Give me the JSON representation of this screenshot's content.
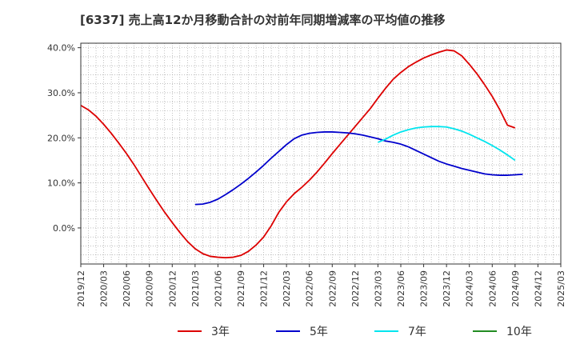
{
  "chart_data": {
    "type": "line",
    "title": "[6337]  売上高12か月移動合計の対前年同期増減率の平均値の推移",
    "xlabel": "",
    "ylabel": "",
    "ylim": [
      -0.08,
      0.41
    ],
    "yticks": [
      0.0,
      0.1,
      0.2,
      0.3,
      0.4
    ],
    "ytick_labels": [
      "0.0%",
      "10.0%",
      "20.0%",
      "30.0%",
      "40.0%"
    ],
    "x_range": [
      "2019/12",
      "2025/03"
    ],
    "x_tick_labels": [
      "2019/12",
      "2020/03",
      "2020/06",
      "2020/09",
      "2020/12",
      "2021/03",
      "2021/06",
      "2021/09",
      "2021/12",
      "2022/03",
      "2022/06",
      "2022/09",
      "2022/12",
      "2023/03",
      "2023/06",
      "2023/09",
      "2023/12",
      "2024/03",
      "2024/06",
      "2024/09",
      "2024/12",
      "2025/03"
    ],
    "grid": true,
    "legend_position": "bottom",
    "series": [
      {
        "name": "3年",
        "color": "#dd0000",
        "points": [
          [
            "2019/12",
            0.272
          ],
          [
            "2020/01",
            0.262
          ],
          [
            "2020/02",
            0.248
          ],
          [
            "2020/03",
            0.23
          ],
          [
            "2020/04",
            0.21
          ],
          [
            "2020/05",
            0.188
          ],
          [
            "2020/06",
            0.165
          ],
          [
            "2020/07",
            0.14
          ],
          [
            "2020/08",
            0.113
          ],
          [
            "2020/09",
            0.086
          ],
          [
            "2020/10",
            0.06
          ],
          [
            "2020/11",
            0.035
          ],
          [
            "2020/12",
            0.012
          ],
          [
            "2021/01",
            -0.01
          ],
          [
            "2021/02",
            -0.03
          ],
          [
            "2021/03",
            -0.046
          ],
          [
            "2021/04",
            -0.057
          ],
          [
            "2021/05",
            -0.063
          ],
          [
            "2021/06",
            -0.065
          ],
          [
            "2021/07",
            -0.066
          ],
          [
            "2021/08",
            -0.065
          ],
          [
            "2021/09",
            -0.061
          ],
          [
            "2021/10",
            -0.052
          ],
          [
            "2021/11",
            -0.038
          ],
          [
            "2021/12",
            -0.02
          ],
          [
            "2022/01",
            0.005
          ],
          [
            "2022/02",
            0.035
          ],
          [
            "2022/03",
            0.058
          ],
          [
            "2022/04",
            0.076
          ],
          [
            "2022/05",
            0.09
          ],
          [
            "2022/06",
            0.106
          ],
          [
            "2022/07",
            0.124
          ],
          [
            "2022/08",
            0.144
          ],
          [
            "2022/09",
            0.165
          ],
          [
            "2022/10",
            0.185
          ],
          [
            "2022/11",
            0.205
          ],
          [
            "2022/12",
            0.225
          ],
          [
            "2023/01",
            0.245
          ],
          [
            "2023/02",
            0.265
          ],
          [
            "2023/03",
            0.288
          ],
          [
            "2023/04",
            0.31
          ],
          [
            "2023/05",
            0.33
          ],
          [
            "2023/06",
            0.345
          ],
          [
            "2023/07",
            0.358
          ],
          [
            "2023/08",
            0.368
          ],
          [
            "2023/09",
            0.377
          ],
          [
            "2023/10",
            0.384
          ],
          [
            "2023/11",
            0.39
          ],
          [
            "2023/12",
            0.395
          ],
          [
            "2024/01",
            0.393
          ],
          [
            "2024/02",
            0.382
          ],
          [
            "2024/03",
            0.363
          ],
          [
            "2024/04",
            0.342
          ],
          [
            "2024/05",
            0.318
          ],
          [
            "2024/06",
            0.292
          ],
          [
            "2024/07",
            0.262
          ],
          [
            "2024/08",
            0.228
          ],
          [
            "2024/09",
            0.222
          ]
        ]
      },
      {
        "name": "5年",
        "color": "#0000cc",
        "points": [
          [
            "2021/03",
            0.052
          ],
          [
            "2021/04",
            0.053
          ],
          [
            "2021/05",
            0.057
          ],
          [
            "2021/06",
            0.064
          ],
          [
            "2021/07",
            0.074
          ],
          [
            "2021/08",
            0.085
          ],
          [
            "2021/09",
            0.097
          ],
          [
            "2021/10",
            0.11
          ],
          [
            "2021/11",
            0.124
          ],
          [
            "2021/12",
            0.139
          ],
          [
            "2022/01",
            0.155
          ],
          [
            "2022/02",
            0.17
          ],
          [
            "2022/03",
            0.185
          ],
          [
            "2022/04",
            0.198
          ],
          [
            "2022/05",
            0.206
          ],
          [
            "2022/06",
            0.21
          ],
          [
            "2022/07",
            0.212
          ],
          [
            "2022/08",
            0.213
          ],
          [
            "2022/09",
            0.213
          ],
          [
            "2022/10",
            0.212
          ],
          [
            "2022/11",
            0.211
          ],
          [
            "2022/12",
            0.209
          ],
          [
            "2023/01",
            0.206
          ],
          [
            "2023/02",
            0.202
          ],
          [
            "2023/03",
            0.198
          ],
          [
            "2023/04",
            0.193
          ],
          [
            "2023/05",
            0.19
          ],
          [
            "2023/06",
            0.186
          ],
          [
            "2023/07",
            0.18
          ],
          [
            "2023/08",
            0.172
          ],
          [
            "2023/09",
            0.164
          ],
          [
            "2023/10",
            0.156
          ],
          [
            "2023/11",
            0.148
          ],
          [
            "2023/12",
            0.142
          ],
          [
            "2024/01",
            0.137
          ],
          [
            "2024/02",
            0.132
          ],
          [
            "2024/03",
            0.128
          ],
          [
            "2024/04",
            0.124
          ],
          [
            "2024/05",
            0.12
          ],
          [
            "2024/06",
            0.118
          ],
          [
            "2024/07",
            0.117
          ],
          [
            "2024/08",
            0.117
          ],
          [
            "2024/09",
            0.118
          ],
          [
            "2024/10",
            0.119
          ]
        ]
      },
      {
        "name": "7年",
        "color": "#00e5ee",
        "points": [
          [
            "2023/03",
            0.19
          ],
          [
            "2023/04",
            0.197
          ],
          [
            "2023/05",
            0.206
          ],
          [
            "2023/06",
            0.213
          ],
          [
            "2023/07",
            0.218
          ],
          [
            "2023/08",
            0.222
          ],
          [
            "2023/09",
            0.224
          ],
          [
            "2023/10",
            0.225
          ],
          [
            "2023/11",
            0.225
          ],
          [
            "2023/12",
            0.224
          ],
          [
            "2024/01",
            0.22
          ],
          [
            "2024/02",
            0.215
          ],
          [
            "2024/03",
            0.208
          ],
          [
            "2024/04",
            0.2
          ],
          [
            "2024/05",
            0.192
          ],
          [
            "2024/06",
            0.183
          ],
          [
            "2024/07",
            0.173
          ],
          [
            "2024/08",
            0.162
          ],
          [
            "2024/09",
            0.15
          ]
        ]
      },
      {
        "name": "10年",
        "color": "#228b22",
        "points": []
      }
    ]
  }
}
